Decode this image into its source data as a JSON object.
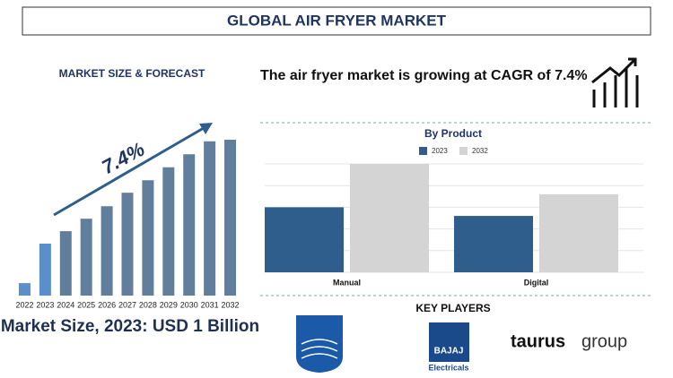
{
  "title": "GLOBAL AIR FRYER MARKET",
  "chart_data": [
    {
      "type": "bar",
      "title": "MARKET SIZE & FORECAST",
      "annotation": "7.4%",
      "categories": [
        "2022",
        "2023",
        "2024",
        "2025",
        "2026",
        "2027",
        "2028",
        "2029",
        "2030",
        "2031",
        "2032"
      ],
      "values": [
        0.24,
        1,
        1.24,
        1.48,
        1.72,
        1.98,
        2.22,
        2.47,
        2.72,
        2.97,
        3.0
      ],
      "colors": [
        "#5b8fc9",
        "#5b8fc9",
        "#617e9c",
        "#617e9c",
        "#617e9c",
        "#617e9c",
        "#617e9c",
        "#617e9c",
        "#617e9c",
        "#617e9c",
        "#617e9c"
      ],
      "ylim": [
        0,
        3
      ],
      "caption": "Market Size, 2023: USD 1 Billion"
    },
    {
      "type": "grouped-bar",
      "headline": "The air fryer market is growing at CAGR of 7.4%",
      "title": "By Product",
      "categories": [
        "Manual",
        "Digital"
      ],
      "series": [
        {
          "name": "2023",
          "color": "#2f5d8c",
          "values": [
            3.0,
            2.6
          ]
        },
        {
          "name": "2032",
          "color": "#d4d4d4",
          "values": [
            5.0,
            3.6
          ]
        }
      ],
      "ylim": [
        0,
        5
      ],
      "yticks": [
        0,
        1,
        2,
        3,
        4,
        5
      ],
      "grid": true
    }
  ],
  "key_players": {
    "title": "KEY PLAYERS",
    "logos": [
      "PHILIPS",
      "BAJAJ",
      "Electricals",
      "taurus",
      "group"
    ]
  }
}
